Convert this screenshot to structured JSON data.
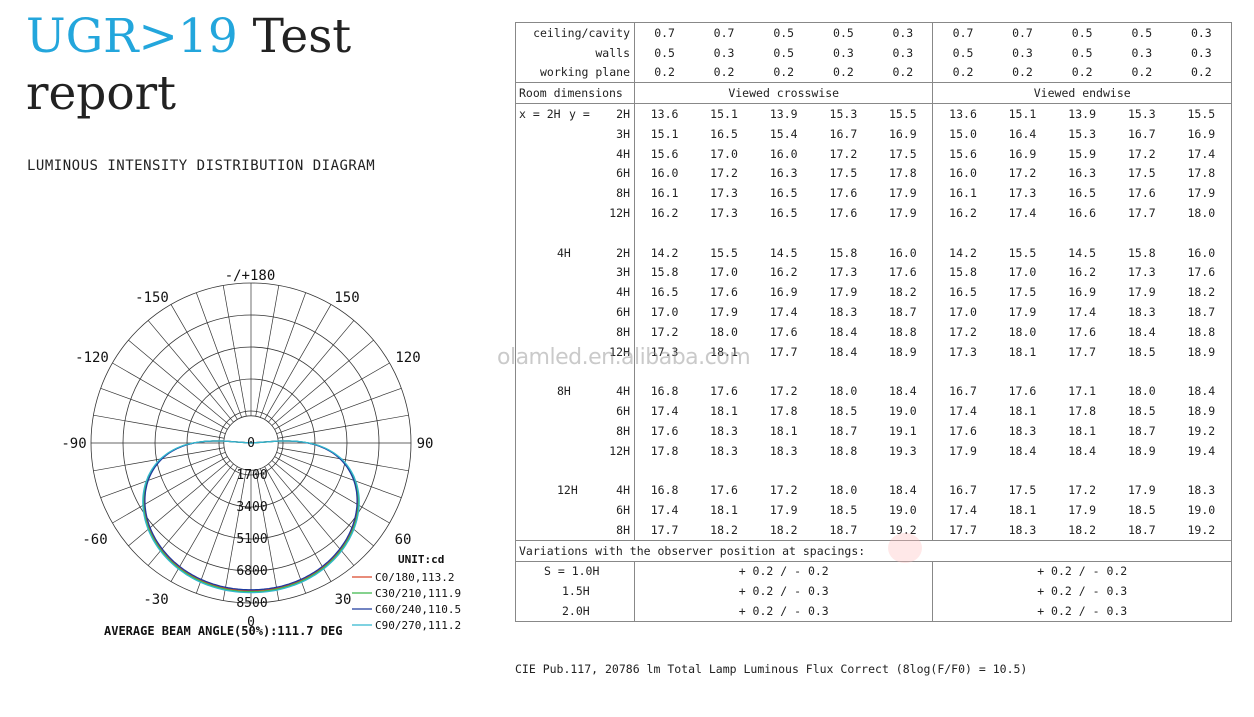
{
  "header": {
    "title_highlight": "UGR>19",
    "title_rest": " Test report",
    "subtitle": "LUMINOUS INTENSITY DISTRIBUTION DIAGRAM"
  },
  "polar": {
    "angle_labels": {
      "top": "-/+180",
      "upper_left": "-150",
      "upper_right": "150",
      "mid_left": "-120",
      "mid_right": "120",
      "left": "-90",
      "right": "90",
      "lower_left": "-60",
      "lower_right": "60",
      "bottom_left": "-30",
      "bottom_right": "30",
      "bottom": "0",
      "center": "0"
    },
    "intensity_scale": [
      "1700",
      "3400",
      "5100",
      "6800",
      "8500"
    ],
    "unit": "UNIT:cd",
    "legend": [
      {
        "label": "C0/180,113.2",
        "color": "#d9472a"
      },
      {
        "label": "C30/210,111.9",
        "color": "#3cb84a"
      },
      {
        "label": "C60/240,110.5",
        "color": "#1f3a9e"
      },
      {
        "label": "C90/270,111.2",
        "color": "#33b7cf"
      }
    ],
    "beam_angle": "AVERAGE BEAM ANGLE(50%):111.7 DEG"
  },
  "ugr_table": {
    "reflectance_rows": [
      {
        "label": "ceiling/cavity",
        "values": [
          "0.7",
          "0.7",
          "0.5",
          "0.5",
          "0.3",
          "0.7",
          "0.7",
          "0.5",
          "0.5",
          "0.3"
        ]
      },
      {
        "label": "walls",
        "values": [
          "0.5",
          "0.3",
          "0.5",
          "0.3",
          "0.3",
          "0.5",
          "0.3",
          "0.5",
          "0.3",
          "0.3"
        ]
      },
      {
        "label": "working plane",
        "values": [
          "0.2",
          "0.2",
          "0.2",
          "0.2",
          "0.2",
          "0.2",
          "0.2",
          "0.2",
          "0.2",
          "0.2"
        ]
      }
    ],
    "room_dimensions_label": "Room dimensions",
    "crosswise_label": "Viewed crosswise",
    "endwise_label": "Viewed endwise",
    "x_prefix": "x =",
    "y_prefix": "y =",
    "groups": [
      {
        "x": "2H",
        "rows": [
          {
            "y": "2H",
            "values": [
              "13.6",
              "15.1",
              "13.9",
              "15.3",
              "15.5",
              "13.6",
              "15.1",
              "13.9",
              "15.3",
              "15.5"
            ]
          },
          {
            "y": "3H",
            "values": [
              "15.1",
              "16.5",
              "15.4",
              "16.7",
              "16.9",
              "15.0",
              "16.4",
              "15.3",
              "16.7",
              "16.9"
            ]
          },
          {
            "y": "4H",
            "values": [
              "15.6",
              "17.0",
              "16.0",
              "17.2",
              "17.5",
              "15.6",
              "16.9",
              "15.9",
              "17.2",
              "17.4"
            ]
          },
          {
            "y": "6H",
            "values": [
              "16.0",
              "17.2",
              "16.3",
              "17.5",
              "17.8",
              "16.0",
              "17.2",
              "16.3",
              "17.5",
              "17.8"
            ]
          },
          {
            "y": "8H",
            "values": [
              "16.1",
              "17.3",
              "16.5",
              "17.6",
              "17.9",
              "16.1",
              "17.3",
              "16.5",
              "17.6",
              "17.9"
            ]
          },
          {
            "y": "12H",
            "values": [
              "16.2",
              "17.3",
              "16.5",
              "17.6",
              "17.9",
              "16.2",
              "17.4",
              "16.6",
              "17.7",
              "18.0"
            ]
          }
        ]
      },
      {
        "x": "4H",
        "rows": [
          {
            "y": "2H",
            "values": [
              "14.2",
              "15.5",
              "14.5",
              "15.8",
              "16.0",
              "14.2",
              "15.5",
              "14.5",
              "15.8",
              "16.0"
            ]
          },
          {
            "y": "3H",
            "values": [
              "15.8",
              "17.0",
              "16.2",
              "17.3",
              "17.6",
              "15.8",
              "17.0",
              "16.2",
              "17.3",
              "17.6"
            ]
          },
          {
            "y": "4H",
            "values": [
              "16.5",
              "17.6",
              "16.9",
              "17.9",
              "18.2",
              "16.5",
              "17.5",
              "16.9",
              "17.9",
              "18.2"
            ]
          },
          {
            "y": "6H",
            "values": [
              "17.0",
              "17.9",
              "17.4",
              "18.3",
              "18.7",
              "17.0",
              "17.9",
              "17.4",
              "18.3",
              "18.7"
            ]
          },
          {
            "y": "8H",
            "values": [
              "17.2",
              "18.0",
              "17.6",
              "18.4",
              "18.8",
              "17.2",
              "18.0",
              "17.6",
              "18.4",
              "18.8"
            ]
          },
          {
            "y": "12H",
            "values": [
              "17.3",
              "18.1",
              "17.7",
              "18.4",
              "18.9",
              "17.3",
              "18.1",
              "17.7",
              "18.5",
              "18.9"
            ]
          }
        ]
      },
      {
        "x": "8H",
        "rows": [
          {
            "y": "4H",
            "values": [
              "16.8",
              "17.6",
              "17.2",
              "18.0",
              "18.4",
              "16.7",
              "17.6",
              "17.1",
              "18.0",
              "18.4"
            ]
          },
          {
            "y": "6H",
            "values": [
              "17.4",
              "18.1",
              "17.8",
              "18.5",
              "19.0",
              "17.4",
              "18.1",
              "17.8",
              "18.5",
              "18.9"
            ]
          },
          {
            "y": "8H",
            "values": [
              "17.6",
              "18.3",
              "18.1",
              "18.7",
              "19.1",
              "17.6",
              "18.3",
              "18.1",
              "18.7",
              "19.2"
            ]
          },
          {
            "y": "12H",
            "values": [
              "17.8",
              "18.3",
              "18.3",
              "18.8",
              "19.3",
              "17.9",
              "18.4",
              "18.4",
              "18.9",
              "19.4"
            ]
          }
        ]
      },
      {
        "x": "12H",
        "rows": [
          {
            "y": "4H",
            "values": [
              "16.8",
              "17.6",
              "17.2",
              "18.0",
              "18.4",
              "16.7",
              "17.5",
              "17.2",
              "17.9",
              "18.3"
            ]
          },
          {
            "y": "6H",
            "values": [
              "17.4",
              "18.1",
              "17.9",
              "18.5",
              "19.0",
              "17.4",
              "18.1",
              "17.9",
              "18.5",
              "19.0"
            ]
          },
          {
            "y": "8H",
            "values": [
              "17.7",
              "18.2",
              "18.2",
              "18.7",
              "19.2",
              "17.7",
              "18.3",
              "18.2",
              "18.7",
              "19.2"
            ]
          }
        ]
      }
    ],
    "variations_label": "Variations with the observer position at spacings:",
    "variations": [
      {
        "spacing": "S = 1.0H",
        "crosswise": "+ 0.2 / - 0.2",
        "endwise": "+ 0.2 / - 0.2"
      },
      {
        "spacing": "1.5H",
        "crosswise": "+ 0.2 / - 0.3",
        "endwise": "+ 0.2 / - 0.3"
      },
      {
        "spacing": "2.0H",
        "crosswise": "+ 0.2 / - 0.3",
        "endwise": "+ 0.2 / - 0.3"
      }
    ],
    "footnote": "CIE Pub.117,  20786 lm Total Lamp Luminous Flux Correct (8log(F/F0) = 10.5)"
  },
  "watermark": "olamled.en.alibaba.com"
}
